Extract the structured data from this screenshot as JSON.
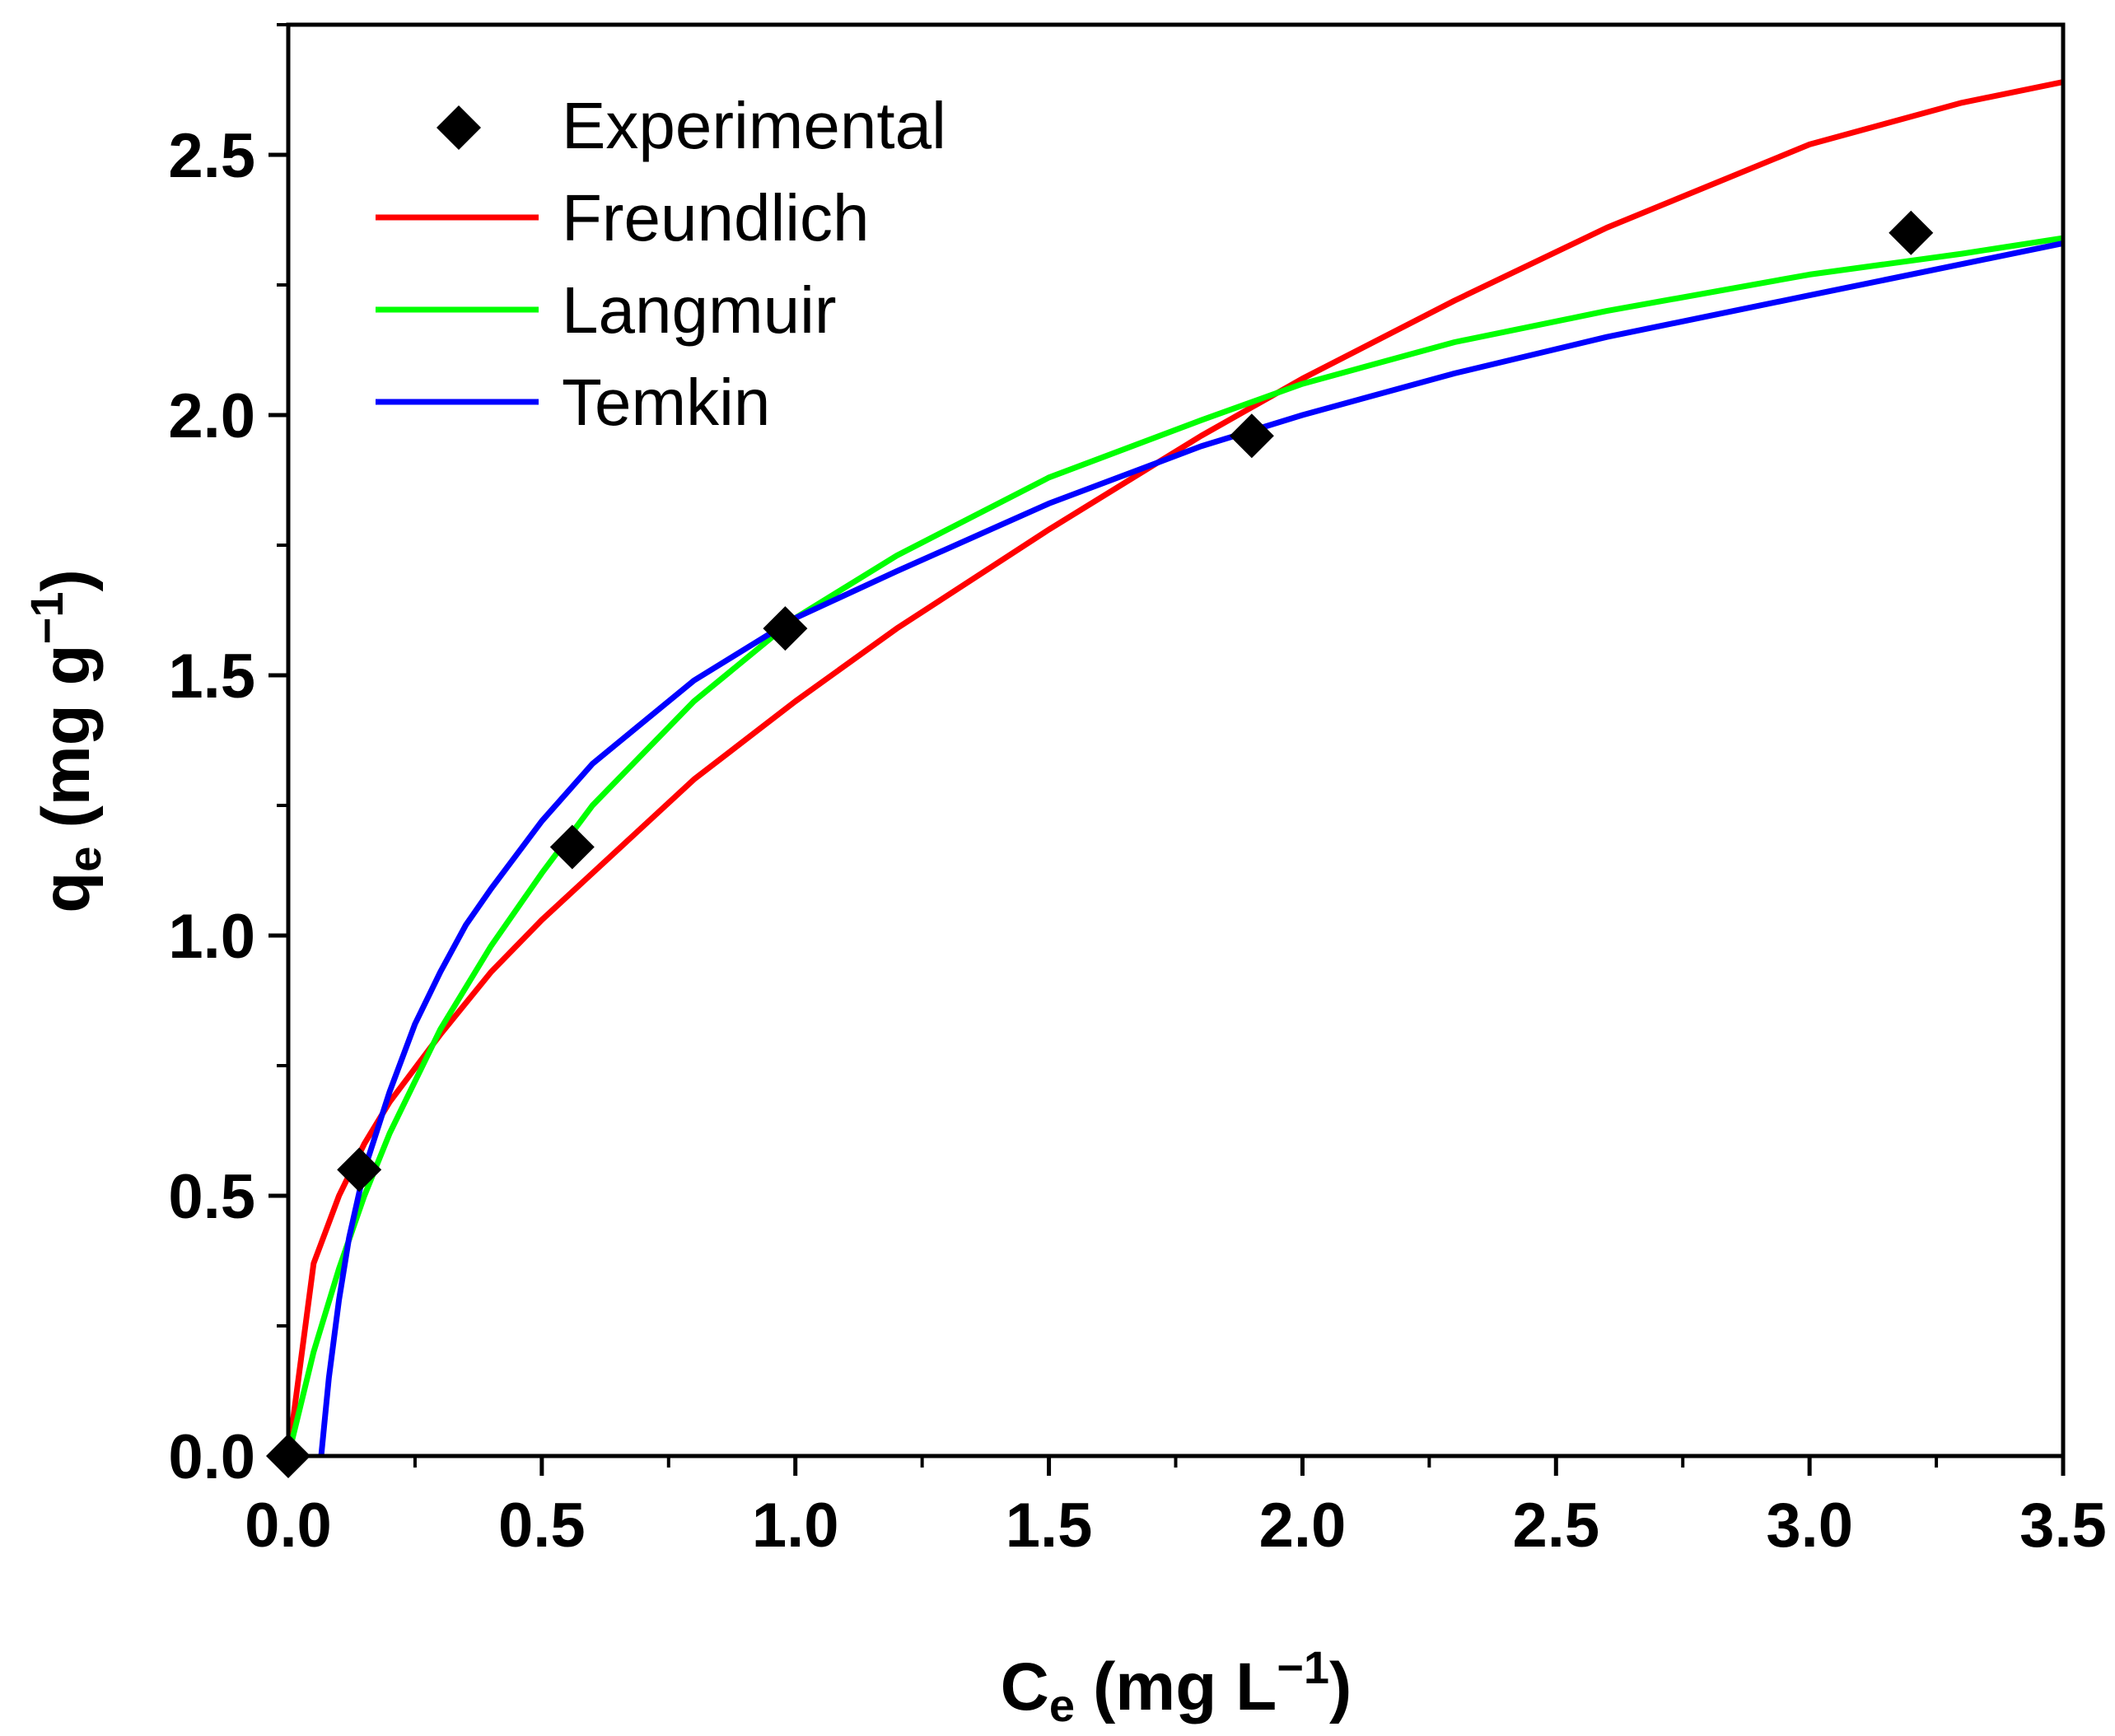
{
  "chart_data": {
    "type": "line",
    "title": "",
    "xlabel": {
      "main": "C",
      "sub": "e",
      "units": "(mg L",
      "sup": "−1",
      "close": ")"
    },
    "ylabel": {
      "main": "q",
      "sub": "e",
      "units": "(mg g",
      "sup": "−1",
      "close": ")"
    },
    "xlim": [
      0.0,
      3.5
    ],
    "ylim": [
      0.0,
      2.75
    ],
    "x_ticks": [
      0.0,
      0.5,
      1.0,
      1.5,
      2.0,
      2.5,
      3.0,
      3.5
    ],
    "x_tick_labels": [
      "0.0",
      "0.5",
      "1.0",
      "1.5",
      "2.0",
      "2.5",
      "3.0",
      "3.5"
    ],
    "y_ticks": [
      0.0,
      0.5,
      1.0,
      1.5,
      2.0,
      2.5
    ],
    "y_tick_labels": [
      "0.0",
      "0.5",
      "1.0",
      "1.5",
      "2.0",
      "2.5"
    ],
    "grid": false,
    "legend_position": "top-left",
    "series": [
      {
        "name": "Experimental",
        "kind": "scatter",
        "marker": "diamond",
        "color": "#000000",
        "x": [
          0.0,
          0.14,
          0.56,
          0.98,
          1.9,
          3.2
        ],
        "y": [
          0.0,
          0.55,
          1.17,
          1.59,
          1.96,
          2.35
        ]
      },
      {
        "name": "Freundlich",
        "kind": "line",
        "color": "#ff0000",
        "x": [
          0.0,
          0.05,
          0.1,
          0.15,
          0.2,
          0.3,
          0.4,
          0.5,
          0.6,
          0.8,
          1.0,
          1.2,
          1.5,
          1.8,
          2.0,
          2.3,
          2.6,
          3.0,
          3.3,
          3.5
        ],
        "y": [
          0.0,
          0.37,
          0.5,
          0.6,
          0.68,
          0.81,
          0.93,
          1.03,
          1.12,
          1.3,
          1.45,
          1.59,
          1.78,
          1.96,
          2.07,
          2.22,
          2.36,
          2.52,
          2.6,
          2.64
        ]
      },
      {
        "name": "Langmuir",
        "kind": "line",
        "color": "#00ff00",
        "x": [
          0.0,
          0.05,
          0.1,
          0.15,
          0.2,
          0.3,
          0.4,
          0.5,
          0.6,
          0.8,
          1.0,
          1.2,
          1.5,
          1.8,
          2.0,
          2.3,
          2.6,
          3.0,
          3.3,
          3.5
        ],
        "y": [
          0.0,
          0.2,
          0.36,
          0.5,
          0.62,
          0.82,
          0.98,
          1.12,
          1.25,
          1.45,
          1.61,
          1.73,
          1.88,
          1.99,
          2.06,
          2.14,
          2.2,
          2.27,
          2.31,
          2.34
        ]
      },
      {
        "name": "Temkin",
        "kind": "line",
        "color": "#0000ff",
        "x": [
          0.065,
          0.08,
          0.1,
          0.12,
          0.15,
          0.2,
          0.25,
          0.3,
          0.35,
          0.4,
          0.5,
          0.6,
          0.8,
          1.0,
          1.2,
          1.5,
          1.8,
          2.0,
          2.3,
          2.6,
          3.0,
          3.3,
          3.5
        ],
        "y": [
          0.0,
          0.15,
          0.3,
          0.42,
          0.55,
          0.7,
          0.83,
          0.93,
          1.02,
          1.09,
          1.22,
          1.33,
          1.49,
          1.61,
          1.7,
          1.83,
          1.94,
          2.0,
          2.08,
          2.15,
          2.23,
          2.29,
          2.33
        ]
      }
    ]
  }
}
